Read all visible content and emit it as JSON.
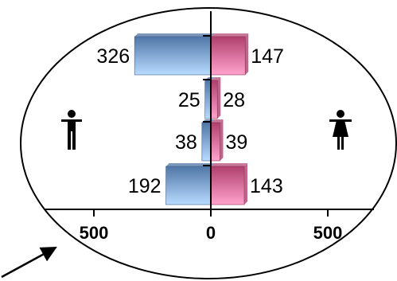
{
  "chart_data": {
    "type": "bar",
    "orientation": "horizontal",
    "layout": "diverging",
    "title": "",
    "xlabel": "",
    "ylabel": "",
    "xlim": [
      -500,
      500
    ],
    "grid": false,
    "legend": "none",
    "categories": [
      "",
      "",
      "",
      ""
    ],
    "series": [
      {
        "side": "left",
        "icon": "male-figure-icon",
        "color": "#5b86b6",
        "values": [
          326,
          25,
          38,
          192
        ]
      },
      {
        "side": "right",
        "icon": "female-figure-icon",
        "color": "#d9628f",
        "values": [
          147,
          28,
          39,
          143
        ]
      }
    ],
    "x_ticks": [
      {
        "value": -500,
        "label": "500"
      },
      {
        "value": 0,
        "label": "0"
      },
      {
        "value": 500,
        "label": "500"
      }
    ]
  },
  "colors": {
    "left_dark": "#4f76a6",
    "left_light": "#b9dbff",
    "right_dark": "#b0406e",
    "right_light": "#ffa3cc",
    "outline": "#000000"
  },
  "decorations": {
    "ellipse_frame": true,
    "callout_arrow": true
  }
}
